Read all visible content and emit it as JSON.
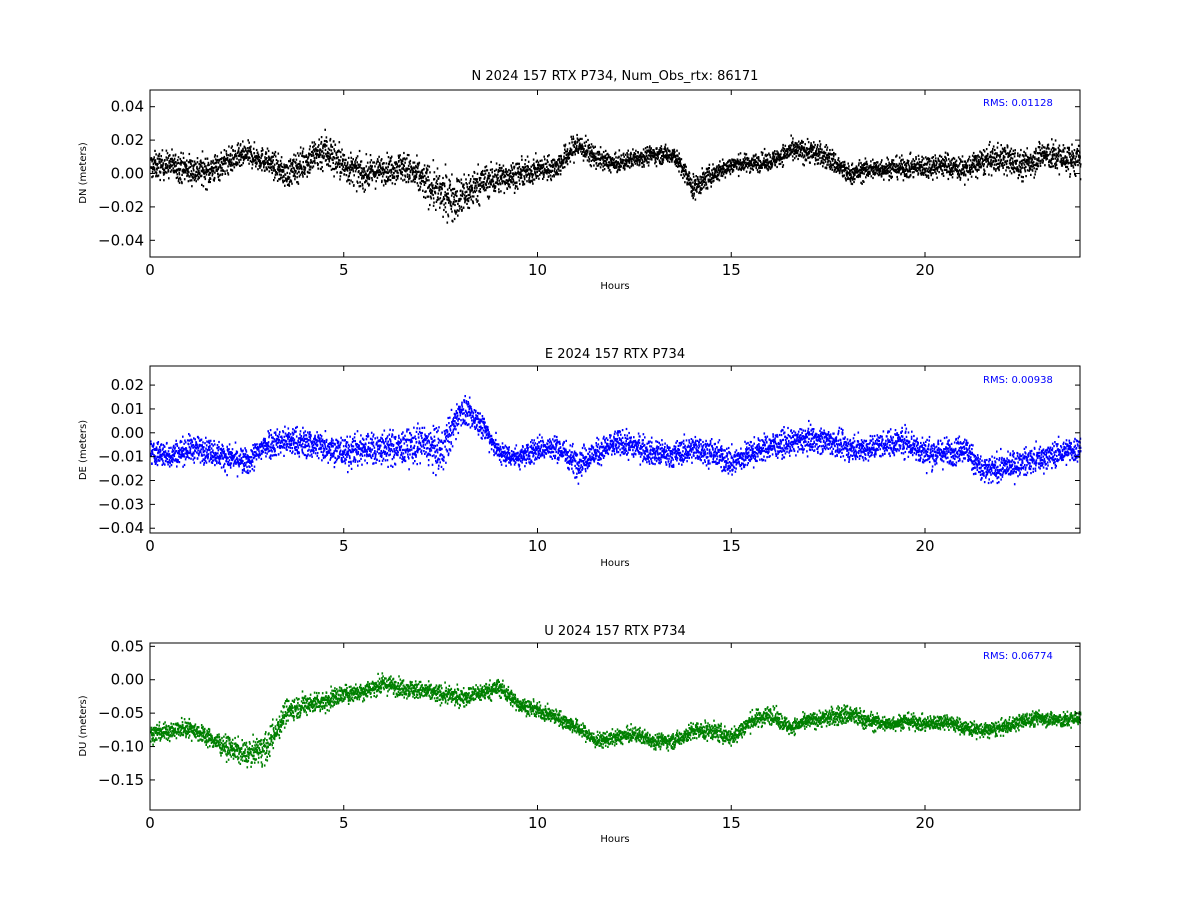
{
  "chart_data": [
    {
      "type": "scatter",
      "title": "N 2024 157 RTX  P734, Num_Obs_rtx: 86171",
      "xlabel": "Hours",
      "ylabel": "DN (meters)",
      "xlim": [
        0,
        24
      ],
      "ylim": [
        -0.05,
        0.05
      ],
      "xticks": [
        0,
        5,
        10,
        15,
        20
      ],
      "yticks": [
        -0.04,
        -0.02,
        0.0,
        0.02,
        0.04
      ],
      "ytick_labels": [
        "−0.04",
        "−0.02",
        "0.00",
        "0.02",
        "0.04"
      ],
      "color": "#000000",
      "annotation": "RMS:  0.01128",
      "annotation_color": "#0000ff",
      "grid": false,
      "series": [
        {
          "x": [
            0,
            0.5,
            1,
            1.5,
            2,
            2.5,
            3,
            3.5,
            4,
            4.5,
            5,
            5.5,
            6,
            6.5,
            7,
            7.5,
            8,
            8.5,
            9,
            9.5,
            10,
            10.5,
            11,
            11.5,
            12,
            12.5,
            13,
            13.5,
            14,
            14.5,
            15,
            15.5,
            16,
            16.5,
            17,
            17.5,
            18,
            18.5,
            19,
            19.5,
            20,
            20.5,
            21,
            21.5,
            22,
            22.5,
            23,
            23.5,
            24
          ],
          "center": [
            0.005,
            0.006,
            0.003,
            0.002,
            0.008,
            0.012,
            0.008,
            0.0,
            0.008,
            0.015,
            0.005,
            0.0,
            0.003,
            0.005,
            -0.003,
            -0.012,
            -0.014,
            -0.005,
            -0.002,
            0.0,
            0.003,
            0.005,
            0.018,
            0.01,
            0.006,
            0.01,
            0.012,
            0.012,
            -0.008,
            0.0,
            0.006,
            0.007,
            0.008,
            0.014,
            0.014,
            0.01,
            0.0,
            0.003,
            0.004,
            0.004,
            0.005,
            0.006,
            0.003,
            0.008,
            0.01,
            0.005,
            0.012,
            0.01,
            0.008
          ],
          "spread": [
            0.018,
            0.018,
            0.02,
            0.02,
            0.018,
            0.016,
            0.016,
            0.018,
            0.022,
            0.028,
            0.022,
            0.02,
            0.018,
            0.02,
            0.024,
            0.03,
            0.03,
            0.024,
            0.02,
            0.018,
            0.016,
            0.016,
            0.018,
            0.014,
            0.012,
            0.012,
            0.012,
            0.012,
            0.016,
            0.014,
            0.012,
            0.012,
            0.012,
            0.014,
            0.016,
            0.016,
            0.014,
            0.014,
            0.014,
            0.014,
            0.016,
            0.016,
            0.016,
            0.018,
            0.02,
            0.02,
            0.02,
            0.02,
            0.02
          ]
        }
      ]
    },
    {
      "type": "scatter",
      "title": "E 2024 157 RTX  P734",
      "xlabel": "Hours",
      "ylabel": "DE (meters)",
      "xlim": [
        0,
        24
      ],
      "ylim": [
        -0.042,
        0.028
      ],
      "xticks": [
        0,
        5,
        10,
        15,
        20
      ],
      "yticks": [
        -0.04,
        -0.03,
        -0.02,
        -0.01,
        0.0,
        0.01,
        0.02
      ],
      "ytick_labels": [
        "−0.04",
        "−0.03",
        "−0.02",
        "−0.01",
        "0.00",
        "0.01",
        "0.02"
      ],
      "color": "#0000ff",
      "annotation": "RMS:  0.00938",
      "annotation_color": "#0000ff",
      "grid": false,
      "series": [
        {
          "x": [
            0,
            0.5,
            1,
            1.5,
            2,
            2.5,
            3,
            3.5,
            4,
            4.5,
            5,
            5.5,
            6,
            6.5,
            7,
            7.5,
            8,
            8.5,
            9,
            9.5,
            10,
            10.5,
            11,
            11.5,
            12,
            12.5,
            13,
            13.5,
            14,
            14.5,
            15,
            15.5,
            16,
            16.5,
            17,
            17.5,
            18,
            18.5,
            19,
            19.5,
            20,
            20.5,
            21,
            21.5,
            22,
            22.5,
            23,
            23.5,
            24
          ],
          "center": [
            -0.008,
            -0.009,
            -0.006,
            -0.007,
            -0.01,
            -0.012,
            -0.004,
            -0.003,
            -0.004,
            -0.005,
            -0.008,
            -0.006,
            -0.006,
            -0.006,
            -0.004,
            -0.008,
            0.01,
            0.005,
            -0.008,
            -0.01,
            -0.006,
            -0.006,
            -0.012,
            -0.008,
            -0.004,
            -0.005,
            -0.008,
            -0.009,
            -0.006,
            -0.008,
            -0.012,
            -0.008,
            -0.005,
            -0.004,
            -0.002,
            -0.003,
            -0.006,
            -0.006,
            -0.004,
            -0.003,
            -0.008,
            -0.008,
            -0.006,
            -0.016,
            -0.014,
            -0.012,
            -0.01,
            -0.008,
            -0.006
          ],
          "spread": [
            0.012,
            0.012,
            0.012,
            0.012,
            0.012,
            0.012,
            0.014,
            0.014,
            0.014,
            0.014,
            0.014,
            0.016,
            0.016,
            0.016,
            0.018,
            0.022,
            0.014,
            0.012,
            0.01,
            0.01,
            0.012,
            0.012,
            0.014,
            0.012,
            0.012,
            0.012,
            0.012,
            0.012,
            0.012,
            0.012,
            0.014,
            0.012,
            0.012,
            0.012,
            0.012,
            0.012,
            0.012,
            0.012,
            0.012,
            0.014,
            0.014,
            0.014,
            0.012,
            0.014,
            0.012,
            0.012,
            0.012,
            0.012,
            0.012
          ]
        }
      ]
    },
    {
      "type": "scatter",
      "title": "U 2024 157 RTX  P734",
      "xlabel": "Hours",
      "ylabel": "DU (meters)",
      "xlim": [
        0,
        24
      ],
      "ylim": [
        -0.195,
        0.055
      ],
      "xticks": [
        0,
        5,
        10,
        15,
        20
      ],
      "yticks": [
        -0.15,
        -0.1,
        -0.05,
        0.0,
        0.05
      ],
      "ytick_labels": [
        "−0.15",
        "−0.10",
        "−0.05",
        "0.00",
        "0.05"
      ],
      "color": "#008000",
      "annotation": "RMS:  0.06774",
      "annotation_color": "#0000ff",
      "grid": false,
      "series": [
        {
          "x": [
            0,
            0.5,
            1,
            1.5,
            2,
            2.5,
            3,
            3.5,
            4,
            4.5,
            5,
            5.5,
            6,
            6.5,
            7,
            7.5,
            8,
            8.5,
            9,
            9.5,
            10,
            10.5,
            11,
            11.5,
            12,
            12.5,
            13,
            13.5,
            14,
            14.5,
            15,
            15.5,
            16,
            16.5,
            17,
            17.5,
            18,
            18.5,
            19,
            19.5,
            20,
            20.5,
            21,
            21.5,
            22,
            22.5,
            23,
            23.5,
            24
          ],
          "center": [
            -0.08,
            -0.075,
            -0.07,
            -0.085,
            -0.1,
            -0.11,
            -0.1,
            -0.045,
            -0.035,
            -0.03,
            -0.02,
            -0.015,
            -0.005,
            -0.01,
            -0.015,
            -0.02,
            -0.025,
            -0.018,
            -0.01,
            -0.035,
            -0.045,
            -0.055,
            -0.07,
            -0.09,
            -0.085,
            -0.08,
            -0.09,
            -0.09,
            -0.075,
            -0.075,
            -0.085,
            -0.06,
            -0.05,
            -0.07,
            -0.06,
            -0.055,
            -0.05,
            -0.06,
            -0.065,
            -0.06,
            -0.065,
            -0.06,
            -0.07,
            -0.075,
            -0.07,
            -0.06,
            -0.055,
            -0.06,
            -0.055
          ],
          "spread": [
            0.03,
            0.03,
            0.03,
            0.03,
            0.035,
            0.04,
            0.05,
            0.04,
            0.035,
            0.035,
            0.03,
            0.03,
            0.03,
            0.03,
            0.03,
            0.03,
            0.03,
            0.03,
            0.03,
            0.025,
            0.025,
            0.025,
            0.025,
            0.025,
            0.025,
            0.025,
            0.025,
            0.025,
            0.03,
            0.03,
            0.03,
            0.03,
            0.03,
            0.025,
            0.025,
            0.03,
            0.035,
            0.03,
            0.025,
            0.025,
            0.025,
            0.025,
            0.025,
            0.025,
            0.025,
            0.025,
            0.025,
            0.025,
            0.025
          ]
        }
      ]
    }
  ]
}
